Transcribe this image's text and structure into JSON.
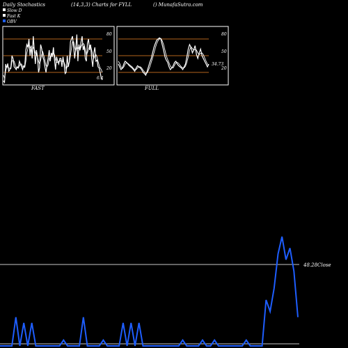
{
  "header": {
    "left": "Daily Stochastics",
    "center": "(14,3,3) Charts for FYLL",
    "right": "() MunafaSutra.com"
  },
  "legend": [
    {
      "label": "Slow  D",
      "color": "#ffffff"
    },
    {
      "label": "Fast K",
      "color": "#ffffff"
    },
    {
      "label": "OBV",
      "color": "#1e5eff"
    }
  ],
  "colors": {
    "background": "#000000",
    "line": "#ffffff",
    "level_line": "#b5651d",
    "obv": "#1e5eff",
    "baseline": "#c8c8c8",
    "text": "#ffffff"
  },
  "chart_data": [
    {
      "type": "line",
      "title": "FAST",
      "ylim": [
        0,
        100
      ],
      "levels": [
        20,
        50,
        80
      ],
      "tick_labels": [
        "80",
        "50",
        "20"
      ],
      "last_value_label": "6.4",
      "series": [
        {
          "values": [
            5,
            2,
            35,
            28,
            36,
            22,
            25,
            30,
            50,
            45,
            30,
            28,
            25,
            30,
            28,
            40,
            35,
            30,
            25,
            32,
            30,
            60,
            70,
            65,
            80,
            50,
            68,
            45,
            85,
            60,
            35,
            60,
            48,
            20,
            28,
            70,
            62,
            48,
            42,
            30,
            20,
            35,
            45,
            60,
            40,
            55,
            50,
            65,
            42,
            25,
            48,
            40,
            35,
            45,
            45,
            30,
            48,
            35,
            18,
            20,
            50,
            30,
            40,
            75,
            80,
            85,
            65,
            45,
            62,
            88,
            40,
            70,
            60,
            75,
            85,
            60,
            68,
            45,
            40,
            72,
            80,
            60,
            70,
            45,
            30,
            55,
            65,
            40,
            42,
            30,
            28,
            20,
            10,
            6.4
          ]
        },
        {
          "values": [
            15,
            10,
            22,
            30,
            30,
            28,
            27,
            27,
            40,
            42,
            40,
            34,
            28,
            28,
            28,
            32,
            35,
            35,
            30,
            29,
            29,
            40,
            55,
            63,
            70,
            65,
            64,
            55,
            65,
            62,
            55,
            52,
            48,
            40,
            35,
            42,
            52,
            57,
            50,
            42,
            32,
            30,
            33,
            45,
            48,
            50,
            48,
            55,
            52,
            42,
            38,
            38,
            40,
            40,
            42,
            40,
            40,
            38,
            33,
            25,
            30,
            33,
            38,
            50,
            63,
            75,
            75,
            65,
            58,
            65,
            63,
            66,
            60,
            66,
            70,
            72,
            70,
            60,
            52,
            55,
            62,
            68,
            68,
            60,
            50,
            45,
            50,
            52,
            48,
            40,
            33,
            28,
            25,
            20
          ]
        }
      ]
    },
    {
      "type": "line",
      "title": "FULL",
      "ylim": [
        0,
        100
      ],
      "levels": [
        20,
        50,
        80
      ],
      "tick_labels": [
        "80",
        "50",
        "20"
      ],
      "last_value_label": "34.73",
      "series": [
        {
          "values": [
            35,
            30,
            25,
            28,
            35,
            40,
            38,
            35,
            32,
            30,
            28,
            25,
            22,
            28,
            32,
            30,
            28,
            25,
            20,
            18,
            15,
            22,
            30,
            38,
            45,
            55,
            65,
            72,
            78,
            80,
            82,
            80,
            70,
            60,
            48,
            42,
            38,
            30,
            25,
            28,
            32,
            38,
            40,
            35,
            32,
            30,
            28,
            25,
            30,
            35,
            48,
            62,
            70,
            65,
            55,
            60,
            68,
            52,
            45,
            55,
            62,
            50,
            45,
            40,
            35,
            30,
            34.73
          ]
        },
        {
          "values": [
            40,
            36,
            30,
            27,
            30,
            35,
            37,
            36,
            34,
            32,
            30,
            27,
            25,
            25,
            28,
            30,
            30,
            28,
            24,
            21,
            18,
            19,
            24,
            30,
            38,
            46,
            55,
            64,
            72,
            77,
            80,
            81,
            77,
            70,
            60,
            50,
            43,
            37,
            31,
            28,
            28,
            33,
            37,
            38,
            36,
            33,
            30,
            28,
            28,
            31,
            38,
            48,
            60,
            66,
            63,
            60,
            61,
            60,
            55,
            52,
            54,
            55,
            52,
            46,
            40,
            35,
            33
          ]
        }
      ]
    },
    {
      "type": "line",
      "title": "",
      "reference_value_label": "48.28",
      "reference_label_suffix": "Close",
      "series": [
        {
          "name": "OBV",
          "values": [
            0,
            0,
            0,
            0,
            5,
            0,
            4,
            0,
            4,
            0,
            0,
            0,
            0,
            0,
            0,
            0,
            1,
            0,
            0,
            0,
            0,
            5,
            0,
            0,
            0,
            0,
            1,
            0,
            0,
            0,
            0,
            4,
            0,
            4,
            0,
            4,
            0,
            0,
            0,
            0,
            0,
            0,
            0,
            0,
            0,
            0,
            1,
            0,
            0,
            0,
            0,
            1,
            0,
            0,
            1,
            0,
            0,
            0,
            0,
            0,
            0,
            0,
            1,
            0,
            0,
            0,
            0,
            8,
            6,
            10,
            16,
            19,
            15,
            17,
            13,
            5
          ]
        }
      ]
    }
  ]
}
